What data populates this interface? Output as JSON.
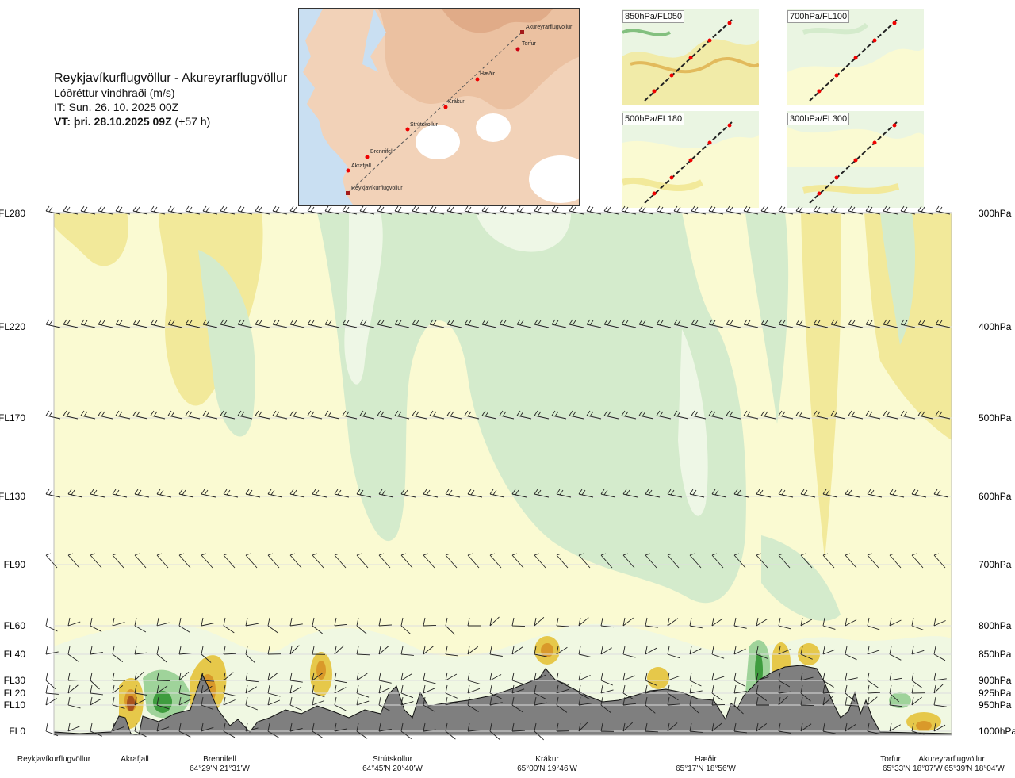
{
  "header": {
    "route": "Reykjavíkurflugvöllur - Akureyrarflugvöllur",
    "variable": "Lóðréttur vindhraði (m/s)",
    "issue_time": "IT: Sun. 26. 10. 2025 00Z",
    "valid_time": "VT: þri. 28.10.2025 09Z",
    "lead": "(+57 h)"
  },
  "main_map": {
    "stations": [
      "Akureyrarflugvöllur",
      "Torfur",
      "Hæðir",
      "Krákur",
      "Strútskollur",
      "Brennifell",
      "Akrafjall",
      "Reykjavíkurflugvöllur"
    ]
  },
  "mini_maps": [
    {
      "label": "850hPa/FL050"
    },
    {
      "label": "700hPa/FL100"
    },
    {
      "label": "500hPa/FL180"
    },
    {
      "label": "300hPa/FL300"
    }
  ],
  "colors": {
    "up_light": "#fafad2",
    "up_mid": "#f2e99a",
    "up_strong": "#e6c84a",
    "up_stronger": "#d9992a",
    "up_max": "#a8521e",
    "down_light": "#eef7e6",
    "down_mid": "#d4ebcc",
    "down_strong": "#9fd39a",
    "down_max": "#3e9c3e",
    "terrain": "#7f7f7f",
    "sea": "#c9dff2",
    "land": "#f2d2b8"
  },
  "chart_data": {
    "type": "heatmap",
    "title": "Reykjavíkurflugvöllur - Akureyrarflugvöllur",
    "variable": "Lóðréttur vindhraði (m/s)",
    "y_levels_fl": [
      {
        "fl": "FL280",
        "hpa": "300hPa"
      },
      {
        "fl": "FL220",
        "hpa": "400hPa"
      },
      {
        "fl": "FL170",
        "hpa": "500hPa"
      },
      {
        "fl": "FL130",
        "hpa": "600hPa"
      },
      {
        "fl": "FL90",
        "hpa": "700hPa"
      },
      {
        "fl": "FL60",
        "hpa": "800hPa"
      },
      {
        "fl": "FL40",
        "hpa": "850hPa"
      },
      {
        "fl": "FL30",
        "hpa": "900hPa"
      },
      {
        "fl": "FL20",
        "hpa": "925hPa"
      },
      {
        "fl": "FL10",
        "hpa": "950hPa"
      },
      {
        "fl": "FL0",
        "hpa": "1000hPa"
      }
    ],
    "locations": [
      {
        "name": "Reykjavíkurflugvöllur",
        "coord": ""
      },
      {
        "name": "Akrafjall",
        "coord": ""
      },
      {
        "name": "Brennifell",
        "coord": "64°29'N 21°31'W"
      },
      {
        "name": "Strútskollur",
        "coord": "64°45'N 20°40'W"
      },
      {
        "name": "Krákur",
        "coord": "65°00'N 19°46'W"
      },
      {
        "name": "Hæðir",
        "coord": "65°17'N 18°56'W"
      },
      {
        "name": "Torfur",
        "coord": "65°33'N 18°07'W"
      },
      {
        "name": "Akureyrarflugvöllur",
        "coord": "65°39'N 18°04'W"
      }
    ],
    "pressure_grid": "on"
  }
}
